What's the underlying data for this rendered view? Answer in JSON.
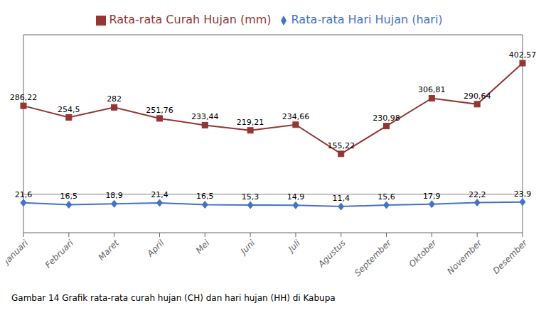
{
  "chart_data": {
    "type": "line",
    "categories": [
      "Januari",
      "Februari",
      "Maret",
      "April",
      "Mei",
      "Juni",
      "Juli",
      "Agustus",
      "September",
      "Oktober",
      "November",
      "Desember"
    ],
    "series": [
      {
        "name": "Rata-rata Hari Hujan (hari)",
        "color": "#4472C4",
        "marker": "diamond",
        "values": [
          21.6,
          16.5,
          18.9,
          21.4,
          16.5,
          15.3,
          14.9,
          11.4,
          15.6,
          17.9,
          22.2,
          23.9
        ],
        "value_labels": [
          "21,6",
          "16,5",
          "18,9",
          "21,4",
          "16,5",
          "15,3",
          "14,9",
          "11,4",
          "15,6",
          "17,9",
          "22,2",
          "23,9"
        ]
      },
      {
        "name": "Rata-rata Curah Hujan (mm)",
        "color": "#943634",
        "marker": "square",
        "values": [
          286.22,
          254.5,
          282.0,
          251.76,
          233.44,
          219.21,
          234.66,
          155.22,
          230.98,
          306.81,
          290.64,
          402.57
        ],
        "value_labels": [
          "286,22",
          "254,5",
          "282",
          "251,76",
          "233,44",
          "219,21",
          "234,66",
          "155,22",
          "230,98",
          "306,81",
          "290,64",
          "402,57"
        ]
      }
    ],
    "ylim": [
      -60,
      480
    ],
    "hline": 45,
    "tick_labels": "x",
    "data_labels": true,
    "legend": "top",
    "grid": false,
    "caption": "Gambar 14  Grafik rata-rata curah hujan (CH) dan hari hujan (HH) di Kabupa"
  }
}
